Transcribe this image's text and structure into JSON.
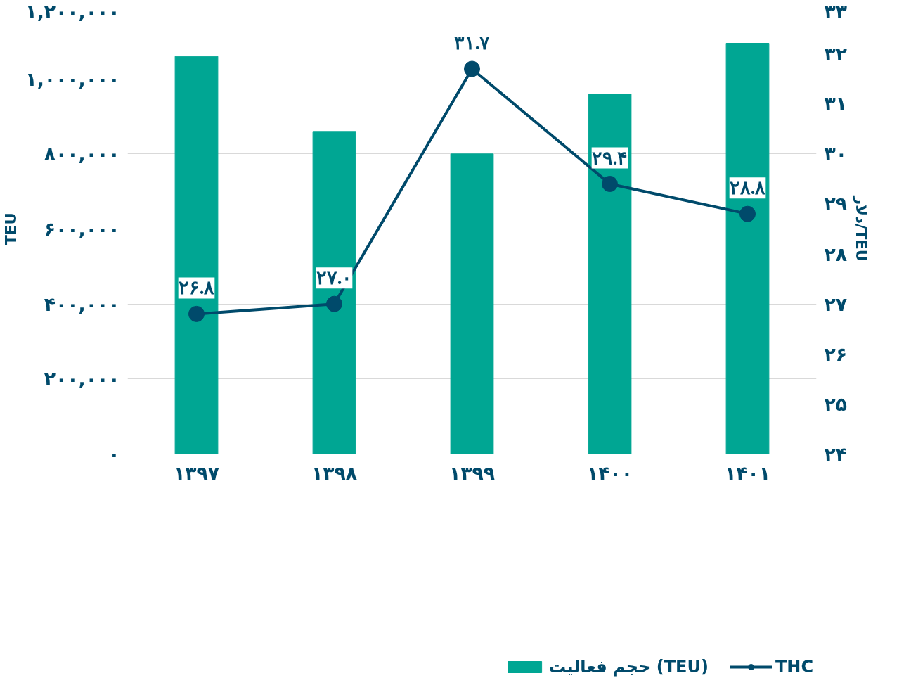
{
  "chart_data": {
    "type": "bar",
    "categories": [
      "۱۳۹۷",
      "۱۳۹۸",
      "۱۳۹۹",
      "۱۴۰۰",
      "۱۴۰۱"
    ],
    "ylabel": "TEU",
    "y2label": "دلار/TEU",
    "ylim": [
      0,
      1200000
    ],
    "yticks": [
      {
        "value": 0,
        "label": "۰"
      },
      {
        "value": 200000,
        "label": "۲۰۰,۰۰۰"
      },
      {
        "value": 400000,
        "label": "۴۰۰,۰۰۰"
      },
      {
        "value": 600000,
        "label": "۶۰۰,۰۰۰"
      },
      {
        "value": 800000,
        "label": "۸۰۰,۰۰۰"
      },
      {
        "value": 1000000,
        "label": "۱,۰۰۰,۰۰۰"
      },
      {
        "value": 1200000,
        "label": "۱,۲۰۰,۰۰۰"
      }
    ],
    "y2lim": [
      24,
      33
    ],
    "y2ticks": [
      {
        "value": 24,
        "label": "۲۴"
      },
      {
        "value": 25,
        "label": "۲۵"
      },
      {
        "value": 26,
        "label": "۲۶"
      },
      {
        "value": 27,
        "label": "۲۷"
      },
      {
        "value": 28,
        "label": "۲۸"
      },
      {
        "value": 29,
        "label": "۲۹"
      },
      {
        "value": 30,
        "label": "۳۰"
      },
      {
        "value": 31,
        "label": "۳۱"
      },
      {
        "value": 32,
        "label": "۳۲"
      },
      {
        "value": 33,
        "label": "۳۳"
      }
    ],
    "grid": "y",
    "legend": "bottom",
    "series": [
      {
        "name": "حجم فعالیت (TEU)",
        "color": "#00a693",
        "values": [
          1060000,
          860000,
          800000,
          960000,
          1095000
        ]
      },
      {
        "name": "THC",
        "type": "line",
        "axis": "y2",
        "color": "#004a6b",
        "marker": "circle",
        "values": [
          26.8,
          27.0,
          31.7,
          29.4,
          28.8
        ],
        "value_labels": [
          "۲۶.۸",
          "۲۷.۰",
          "۳۱.۷",
          "۲۹.۴",
          "۲۸.۸"
        ]
      }
    ]
  }
}
